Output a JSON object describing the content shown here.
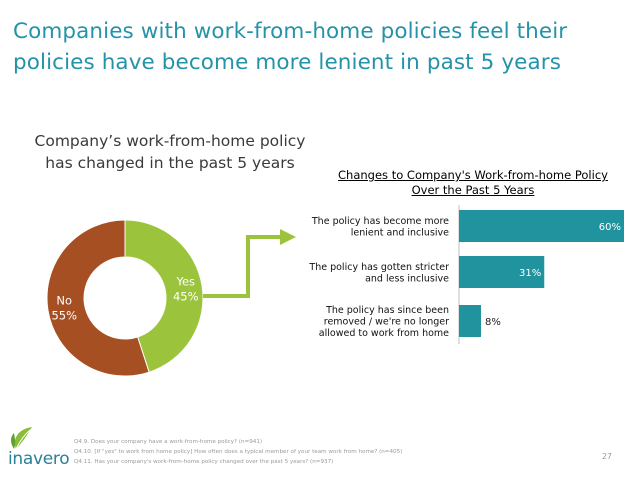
{
  "slide": {
    "title_line1": "Companies with work-from-home policies feel their",
    "title_line2": "policies have become more lenient in past 5 years",
    "subtitle_line1": "Company’s work-from-home policy",
    "subtitle_line2": "has changed in the past 5 years",
    "page_number": "27",
    "footnotes": [
      "Q4.9. Does your company have a work-from-home policy? (n=941)",
      "Q4.10. [If \"yes\" to work from home policy] How often does a typical member of your team work from home? (n=405)",
      "Q4.11. Has your company's work-from-home policy changed over the past 5 years? (n=937)"
    ],
    "logo_text": "inavero"
  },
  "colors": {
    "title": "#2493a9",
    "donut_yes": "#9bc43c",
    "donut_no": "#a64f23",
    "bar": "#20939f",
    "arrow": "#9bc43c"
  },
  "chart_data": [
    {
      "type": "pie",
      "variant": "donut",
      "title": "",
      "slices": [
        {
          "label": "Yes",
          "value": 45,
          "value_label": "45%"
        },
        {
          "label": "No",
          "value": 55,
          "value_label": "55%"
        }
      ]
    },
    {
      "type": "bar",
      "orientation": "horizontal",
      "title_line1": "Changes to Company's Work-from-home Policy",
      "title_line2": "Over the Past 5 Years",
      "categories": [
        [
          "The policy has become more",
          "lenient and inclusive"
        ],
        [
          "The policy has gotten stricter",
          "and less inclusive"
        ],
        [
          "The policy has since been",
          "removed / we're no longer",
          "allowed to work from home"
        ]
      ],
      "values": [
        60,
        31,
        8
      ],
      "value_labels": [
        "60%",
        "31%",
        "8%"
      ],
      "xlim": [
        0,
        60
      ],
      "grid": false,
      "legend": "none"
    }
  ]
}
